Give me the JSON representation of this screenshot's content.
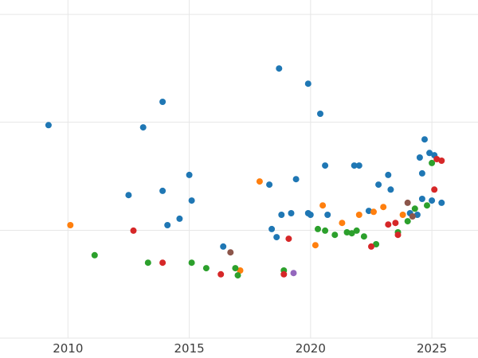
{
  "chart_data": {
    "type": "scatter",
    "title": "",
    "xlabel": "",
    "ylabel": "",
    "xlim": [
      2007.2,
      2026.9
    ],
    "ylim": [
      0,
      102
    ],
    "x_ticks": [
      2010,
      2015,
      2020,
      2025
    ],
    "x_tick_labels": [
      "2010",
      "2015",
      "2020",
      "2025"
    ],
    "y_gridlines": [
      0,
      33.3,
      66.7,
      100
    ],
    "grid": true,
    "legend": "none",
    "background_color": "#ffffff",
    "grid_color": "#e6e6e6",
    "tick_label_color": "#3b3b3b",
    "marker_radius": 4,
    "series": [
      {
        "name": "series-blue",
        "color": "#1f77b4",
        "points": [
          [
            2009.2,
            65.8
          ],
          [
            2012.5,
            44.2
          ],
          [
            2013.1,
            65.1
          ],
          [
            2013.9,
            73.0
          ],
          [
            2013.9,
            45.5
          ],
          [
            2014.1,
            34.9
          ],
          [
            2014.6,
            36.9
          ],
          [
            2015.0,
            50.4
          ],
          [
            2015.1,
            42.5
          ],
          [
            2016.4,
            28.3
          ],
          [
            2018.3,
            47.4
          ],
          [
            2018.4,
            33.7
          ],
          [
            2018.6,
            31.2
          ],
          [
            2018.7,
            83.3
          ],
          [
            2018.8,
            38.1
          ],
          [
            2019.2,
            38.6
          ],
          [
            2019.4,
            49.1
          ],
          [
            2019.9,
            78.6
          ],
          [
            2019.9,
            38.6
          ],
          [
            2020.0,
            38.1
          ],
          [
            2020.4,
            69.3
          ],
          [
            2020.6,
            53.3
          ],
          [
            2020.7,
            38.1
          ],
          [
            2021.8,
            53.3
          ],
          [
            2022.0,
            53.3
          ],
          [
            2022.4,
            39.3
          ],
          [
            2022.8,
            47.4
          ],
          [
            2023.2,
            50.4
          ],
          [
            2023.3,
            45.9
          ],
          [
            2024.1,
            38.6
          ],
          [
            2024.4,
            38.1
          ],
          [
            2024.5,
            55.8
          ],
          [
            2024.6,
            50.9
          ],
          [
            2024.6,
            43.0
          ],
          [
            2024.7,
            61.4
          ],
          [
            2024.9,
            57.2
          ],
          [
            2025.0,
            42.5
          ],
          [
            2025.1,
            56.5
          ],
          [
            2025.4,
            41.8
          ]
        ]
      },
      {
        "name": "series-orange",
        "color": "#ff7f0e",
        "points": [
          [
            2010.1,
            34.9
          ],
          [
            2017.1,
            20.9
          ],
          [
            2017.9,
            48.4
          ],
          [
            2020.2,
            28.7
          ],
          [
            2020.5,
            41.0
          ],
          [
            2021.3,
            35.6
          ],
          [
            2022.0,
            38.1
          ],
          [
            2022.6,
            39.0
          ],
          [
            2023.0,
            40.5
          ],
          [
            2023.8,
            38.1
          ]
        ]
      },
      {
        "name": "series-green",
        "color": "#2ca02c",
        "points": [
          [
            2011.1,
            25.6
          ],
          [
            2013.3,
            23.3
          ],
          [
            2015.1,
            23.3
          ],
          [
            2015.7,
            21.6
          ],
          [
            2016.9,
            21.6
          ],
          [
            2017.0,
            19.4
          ],
          [
            2018.9,
            20.9
          ],
          [
            2020.3,
            33.7
          ],
          [
            2020.6,
            33.2
          ],
          [
            2021.0,
            31.9
          ],
          [
            2021.5,
            32.7
          ],
          [
            2021.7,
            32.4
          ],
          [
            2021.9,
            33.2
          ],
          [
            2022.2,
            31.4
          ],
          [
            2022.7,
            29.0
          ],
          [
            2023.6,
            32.7
          ],
          [
            2024.0,
            36.1
          ],
          [
            2024.3,
            40.0
          ],
          [
            2024.8,
            41.0
          ],
          [
            2025.0,
            54.1
          ]
        ]
      },
      {
        "name": "series-red",
        "color": "#d62728",
        "points": [
          [
            2012.7,
            33.2
          ],
          [
            2013.9,
            23.3
          ],
          [
            2016.3,
            19.7
          ],
          [
            2018.9,
            19.7
          ],
          [
            2019.1,
            30.7
          ],
          [
            2022.5,
            28.3
          ],
          [
            2023.2,
            35.1
          ],
          [
            2023.5,
            35.6
          ],
          [
            2023.6,
            31.9
          ],
          [
            2025.1,
            45.9
          ],
          [
            2025.2,
            55.3
          ],
          [
            2025.4,
            54.8
          ]
        ]
      },
      {
        "name": "series-brown",
        "color": "#8c564b",
        "points": [
          [
            2016.7,
            26.5
          ],
          [
            2024.0,
            41.8
          ],
          [
            2024.2,
            37.6
          ]
        ]
      },
      {
        "name": "series-purple",
        "color": "#9467bd",
        "points": [
          [
            2019.3,
            20.1
          ]
        ]
      }
    ]
  }
}
